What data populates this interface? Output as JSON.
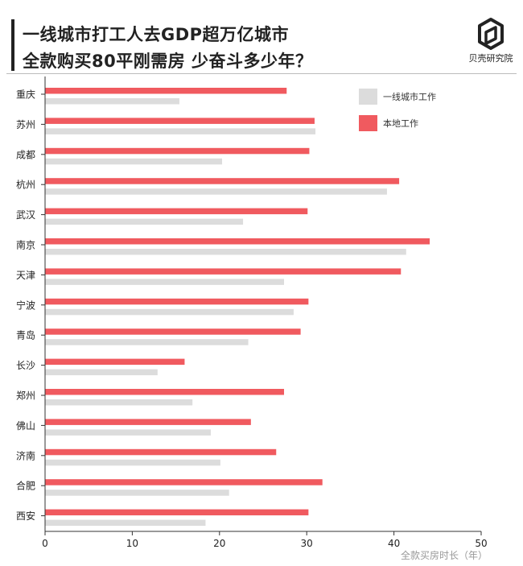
{
  "header": {
    "title_line1": "一线城市打工人去GDP超万亿城市",
    "title_line2": "全款购买80平刚需房 少奋斗多少年？",
    "brand": "贝壳研究院"
  },
  "colors": {
    "tier1": "#dcdcdc",
    "local": "#f05a5f",
    "axis": "#333333"
  },
  "chart_data": {
    "type": "bar",
    "orientation": "horizontal",
    "categories": [
      "重庆",
      "苏州",
      "成都",
      "杭州",
      "武汉",
      "南京",
      "天津",
      "宁波",
      "青岛",
      "长沙",
      "郑州",
      "佛山",
      "济南",
      "合肥",
      "西安"
    ],
    "series": [
      {
        "name": "本地工作",
        "color": "#f05a5f",
        "values": [
          27.7,
          30.9,
          30.3,
          40.6,
          30.1,
          44.1,
          40.8,
          30.2,
          29.3,
          16.0,
          27.4,
          23.6,
          26.5,
          31.8,
          30.2
        ]
      },
      {
        "name": "一线城市工作",
        "color": "#dcdcdc",
        "values": [
          15.4,
          31.0,
          20.3,
          39.2,
          22.7,
          41.4,
          27.4,
          28.5,
          23.3,
          12.9,
          16.9,
          19.0,
          20.1,
          21.1,
          18.4
        ]
      }
    ],
    "xlabel": "全款买房时长（年）",
    "xlim": [
      0,
      50
    ],
    "xticks": [
      0,
      10,
      20,
      30,
      40,
      50
    ],
    "legend": [
      "一线城市工作",
      "本地工作"
    ],
    "legend_position": "top-right",
    "grid": false
  }
}
